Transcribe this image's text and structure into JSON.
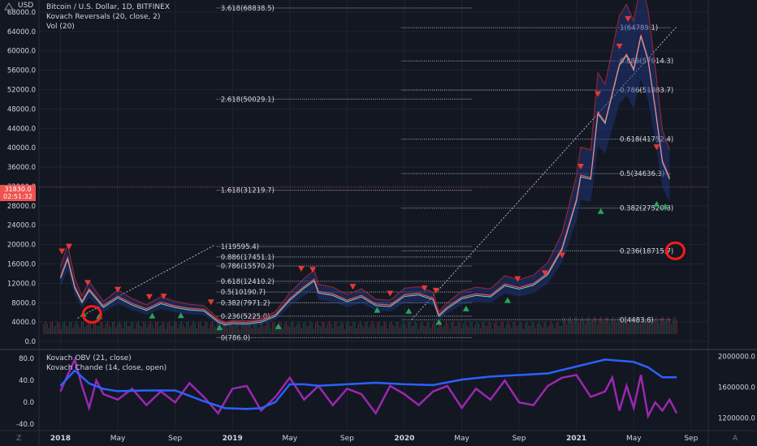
{
  "header": {
    "usd_label": "USD",
    "legend": [
      "Bitcoin / U.S. Dollar, 1D, BITFINEX",
      "Kovach Reversals (20, close, 2)",
      "Vol (20)"
    ],
    "legend_lower": [
      "Kovach OBV (21, close)",
      "Kovach Chande (14, close, open)"
    ],
    "current_price": "31830.0",
    "countdown": "02:51:32"
  },
  "footer": {
    "z_label": "Z",
    "a_label": "A"
  },
  "colors": {
    "background": "#131722",
    "up": "#26a69a",
    "down": "#ef5350",
    "band_blue": "#1e3a8a",
    "band_red": "#c62828",
    "obv": "#2962ff",
    "chande": "#9c27b0",
    "text": "#d1d4dc",
    "fib_line": "#b2b5be"
  },
  "chart_data": [
    {
      "type": "line",
      "title": "Bitcoin / U.S. Dollar, 1D, BITFINEX",
      "y_ticks": [
        0,
        4000,
        8000,
        12000,
        16000,
        20000,
        24000,
        28000,
        32000,
        36000,
        40000,
        44000,
        48000,
        52000,
        56000,
        60000,
        64000,
        68000
      ],
      "x_tick_labels": [
        "2018",
        "May",
        "Sep",
        "2019",
        "May",
        "Sep",
        "2020",
        "May",
        "Sep",
        "2021",
        "May",
        "Sep"
      ],
      "x_tick_months": [
        0,
        4,
        8,
        12,
        16,
        20,
        24,
        28,
        32,
        36,
        40,
        44
      ],
      "x_range_months": [
        -1.5,
        45.2
      ],
      "ylim": [
        -1500,
        70500
      ],
      "series": [
        {
          "x_months": [
            0,
            0.5,
            1,
            1.5,
            2,
            3,
            4,
            5,
            6,
            7,
            8,
            9,
            10,
            11,
            11.5,
            12,
            13,
            14,
            15,
            16,
            17,
            17.7,
            18,
            19,
            20,
            21,
            22,
            23,
            24,
            25,
            26,
            26.4,
            27,
            28,
            29,
            30,
            31,
            32,
            33,
            34,
            35,
            36,
            36.3,
            37,
            37.5,
            38,
            39,
            39.5,
            40,
            40.5,
            41,
            41.5,
            42,
            42.5
          ],
          "values": [
            13000,
            17000,
            11000,
            8000,
            10500,
            7000,
            9000,
            7500,
            6400,
            7800,
            7000,
            6500,
            6300,
            4000,
            3400,
            3700,
            3600,
            4000,
            5200,
            8500,
            11000,
            12500,
            10000,
            9500,
            8200,
            9200,
            7400,
            7200,
            9300,
            9600,
            8600,
            5200,
            6800,
            8800,
            9500,
            9200,
            11500,
            10800,
            11600,
            13800,
            19000,
            29000,
            34000,
            33500,
            47000,
            45000,
            57000,
            59000,
            56000,
            63000,
            58000,
            48000,
            37000,
            33500
          ]
        }
      ],
      "fib_left": [
        {
          "label": "3.618(68838.5)",
          "value": 68838.5
        },
        {
          "label": "2.618(50029.1)",
          "value": 50029.1
        },
        {
          "label": "1.618(31219.7)",
          "value": 31219.7
        },
        {
          "label": "1(19595.4)",
          "value": 19595.4
        },
        {
          "label": "0.886(17451.1)",
          "value": 17451.1
        },
        {
          "label": "0.786(15570.2)",
          "value": 15570.2
        },
        {
          "label": "0.618(12410.2)",
          "value": 12410.2
        },
        {
          "label": "0.5(10190.7)",
          "value": 10190.7
        },
        {
          "label": "0.382(7971.2)",
          "value": 7971.2
        },
        {
          "label": "0.236(5225.0)",
          "value": 5225.0
        },
        {
          "label": "0(786.0)",
          "value": 786.0
        }
      ],
      "fib_right": [
        {
          "label": "1(64789.1)",
          "value": 64789.1
        },
        {
          "label": "0.886(57914.3)",
          "value": 57914.3
        },
        {
          "label": "0.786(51883.7)",
          "value": 51883.7
        },
        {
          "label": "0.618(41752.4)",
          "value": 41752.4
        },
        {
          "label": "0.5(34636.3)",
          "value": 34636.3
        },
        {
          "label": "0.382(27520.3)",
          "value": 27520.3
        },
        {
          "label": "0.236(18715.7)",
          "value": 18715.7
        },
        {
          "label": "0(4483.6)",
          "value": 4483.6
        }
      ],
      "down_markers": [
        {
          "m": 0.1,
          "v": 18500
        },
        {
          "m": 0.6,
          "v": 19500
        },
        {
          "m": 1.9,
          "v": 12000
        },
        {
          "m": 4.0,
          "v": 10600
        },
        {
          "m": 6.2,
          "v": 9100
        },
        {
          "m": 7.2,
          "v": 9200
        },
        {
          "m": 10.5,
          "v": 8000
        },
        {
          "m": 16.8,
          "v": 14900
        },
        {
          "m": 17.6,
          "v": 14700
        },
        {
          "m": 20.4,
          "v": 11200
        },
        {
          "m": 23.0,
          "v": 9800
        },
        {
          "m": 25.4,
          "v": 10900
        },
        {
          "m": 26.2,
          "v": 10400
        },
        {
          "m": 31.9,
          "v": 12800
        },
        {
          "m": 33.8,
          "v": 14000
        },
        {
          "m": 35.0,
          "v": 17700
        },
        {
          "m": 36.3,
          "v": 36000
        },
        {
          "m": 37.5,
          "v": 51000
        },
        {
          "m": 39.0,
          "v": 60800
        },
        {
          "m": 39.6,
          "v": 66500
        },
        {
          "m": 41.6,
          "v": 40000
        }
      ],
      "up_markers": [
        {
          "m": 1.6,
          "v": 5800
        },
        {
          "m": 2.7,
          "v": 5300
        },
        {
          "m": 6.4,
          "v": 5400
        },
        {
          "m": 8.4,
          "v": 5500
        },
        {
          "m": 11.1,
          "v": 3000
        },
        {
          "m": 15.2,
          "v": 3200
        },
        {
          "m": 22.1,
          "v": 6600
        },
        {
          "m": 24.3,
          "v": 6400
        },
        {
          "m": 26.4,
          "v": 4100
        },
        {
          "m": 28.3,
          "v": 6900
        },
        {
          "m": 31.2,
          "v": 8600
        },
        {
          "m": 37.7,
          "v": 27000
        },
        {
          "m": 41.6,
          "v": 28500
        },
        {
          "m": 42.2,
          "v": 28000
        }
      ],
      "highlight_circles": [
        {
          "m": 2.2,
          "v": 5600
        },
        {
          "m": 42.9,
          "v": 18715.7
        }
      ]
    },
    {
      "type": "line",
      "legend": [
        "Kovach OBV (21, close)",
        "Kovach Chande (14, close, open)"
      ],
      "y_ticks_left": [
        -40,
        0,
        40,
        80
      ],
      "y_ticks_right": [
        1200000,
        1600000,
        2000000
      ],
      "y_tick_labels_right": [
        "1200000.0",
        "1600000.0",
        "2000000.0"
      ],
      "series": [
        {
          "name": "Kovach OBV (21, close)",
          "axis": "right",
          "x_months": [
            0,
            1,
            2,
            3,
            4,
            6,
            8,
            10,
            11.5,
            13,
            14,
            15,
            16,
            17,
            18,
            20,
            22,
            24,
            26,
            28,
            30,
            32,
            34,
            36,
            38,
            40,
            41,
            42,
            43
          ],
          "values": [
            1620000,
            1820000,
            1650000,
            1580000,
            1550000,
            1560000,
            1560000,
            1420000,
            1330000,
            1320000,
            1330000,
            1410000,
            1640000,
            1640000,
            1620000,
            1640000,
            1660000,
            1640000,
            1630000,
            1700000,
            1740000,
            1760000,
            1780000,
            1870000,
            1960000,
            1930000,
            1860000,
            1730000,
            1730000
          ]
        },
        {
          "name": "Kovach Chande (14, close, open)",
          "axis": "left",
          "x_months": [
            0,
            0.5,
            1,
            1.5,
            2,
            2.5,
            3,
            4,
            5,
            6,
            7,
            8,
            9,
            10,
            11,
            12,
            13,
            14,
            15,
            16,
            17,
            18,
            19,
            20,
            21,
            22,
            23,
            24,
            25,
            26,
            27,
            28,
            29,
            30,
            31,
            32,
            33,
            34,
            35,
            36,
            37,
            38,
            38.5,
            39,
            39.5,
            40,
            40.5,
            41,
            41.5,
            42,
            42.5,
            43
          ],
          "values": [
            20,
            50,
            78,
            30,
            -10,
            40,
            15,
            5,
            25,
            -5,
            20,
            0,
            35,
            10,
            -20,
            25,
            30,
            -15,
            10,
            45,
            5,
            30,
            -5,
            25,
            15,
            -20,
            30,
            15,
            -5,
            20,
            30,
            -10,
            25,
            5,
            40,
            0,
            -5,
            30,
            45,
            50,
            10,
            20,
            45,
            -15,
            30,
            -10,
            50,
            -25,
            0,
            -15,
            5,
            -20
          ]
        }
      ]
    }
  ]
}
